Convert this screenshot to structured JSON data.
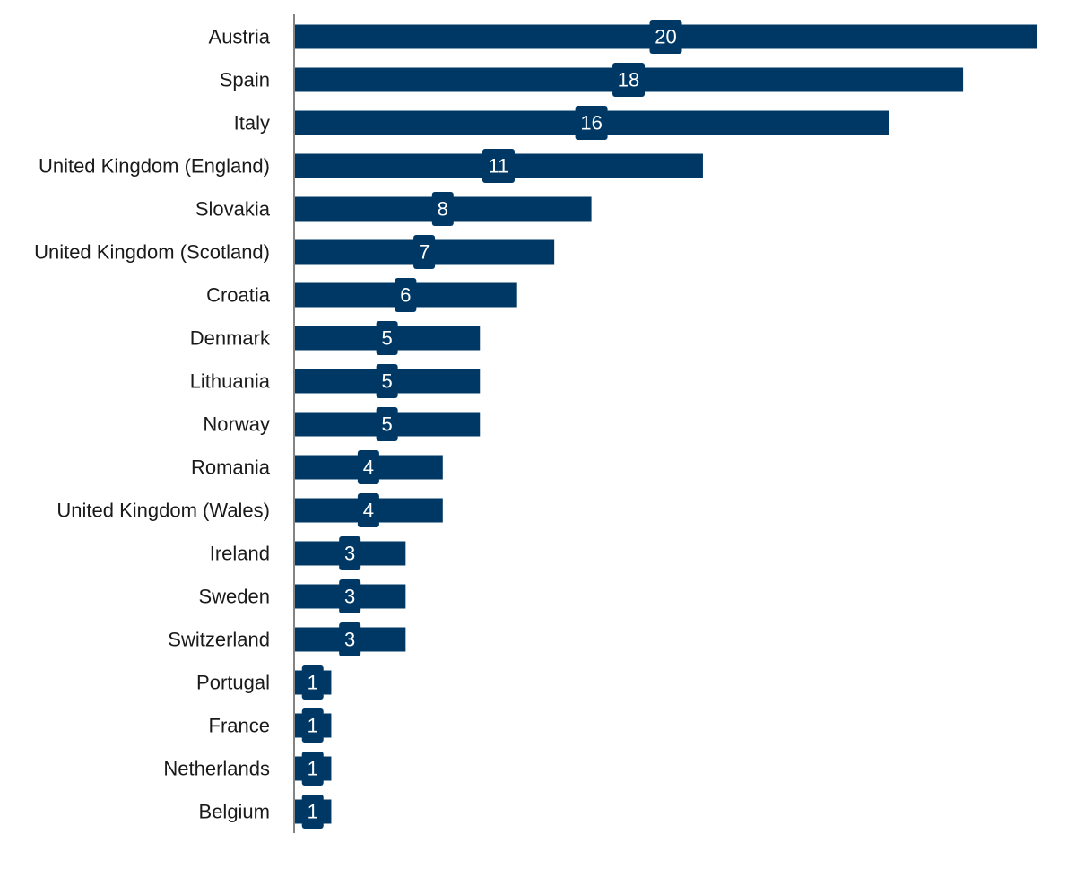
{
  "chart_data": {
    "type": "bar",
    "orientation": "horizontal",
    "title": "",
    "xlabel": "",
    "ylabel": "",
    "grid": false,
    "xlim": [
      0,
      20
    ],
    "categories": [
      "Austria",
      "Spain",
      "Italy",
      "United Kingdom (England)",
      "Slovakia",
      "United Kingdom (Scotland)",
      "Croatia",
      "Denmark",
      "Lithuania",
      "Norway",
      "Romania",
      "United Kingdom (Wales)",
      "Ireland",
      "Sweden",
      "Switzerland",
      "Portugal",
      "France",
      "Netherlands",
      "Belgium"
    ],
    "values": [
      20,
      18,
      16,
      11,
      8,
      7,
      6,
      5,
      5,
      5,
      4,
      4,
      3,
      3,
      3,
      1,
      1,
      1,
      1
    ],
    "data_labels": true,
    "colors": {
      "bar": "#003865",
      "axis": "#333333",
      "label_text": "#ffffff"
    }
  }
}
